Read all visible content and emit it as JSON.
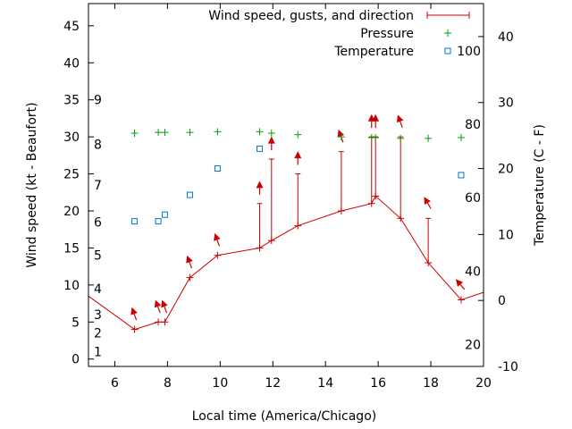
{
  "chart_data": {
    "type": "line",
    "xlabel": "Local time (America/Chicago)",
    "ylabel": "Wind speed (kt - Beaufort)",
    "y2label": "Temperature (C - F)",
    "xlim": [
      5,
      20
    ],
    "ylim": [
      -1,
      48
    ],
    "y2lim": [
      -10,
      45
    ],
    "x_ticks": [
      "6",
      "8",
      "10",
      "12",
      "14",
      "16",
      "18",
      "20"
    ],
    "y_ticks": [
      "0",
      "5",
      "10",
      "15",
      "20",
      "25",
      "30",
      "35",
      "40",
      "45"
    ],
    "y2_ticks": [
      "-10",
      "0",
      "10",
      "20",
      "30",
      "40"
    ],
    "beaufort_labels": [
      {
        "text": "1",
        "wind": 1
      },
      {
        "text": "2",
        "wind": 3.5
      },
      {
        "text": "3",
        "wind": 6
      },
      {
        "text": "4",
        "wind": 9.5
      },
      {
        "text": "5",
        "wind": 14
      },
      {
        "text": "6",
        "wind": 18.5
      },
      {
        "text": "7",
        "wind": 23.5
      },
      {
        "text": "8",
        "wind": 29
      },
      {
        "text": "9",
        "wind": 35
      }
    ],
    "fahrenheit_labels": [
      {
        "text": "20",
        "temp": -6.7
      },
      {
        "text": "40",
        "temp": 4.4
      },
      {
        "text": "60",
        "temp": 15.6
      },
      {
        "text": "80",
        "temp": 26.7
      },
      {
        "text": "100",
        "temp": 37.8
      }
    ],
    "legend": {
      "position": "top-right",
      "entries": [
        "Wind speed, gusts, and direction",
        "Pressure",
        "Temperature"
      ]
    },
    "series": [
      {
        "name": "Wind speed, gusts, and direction",
        "type": "line",
        "color": "#cc0000",
        "x": [
          6.75,
          7.65,
          7.9,
          8.85,
          9.9,
          11.5,
          11.95,
          12.95,
          14.6,
          15.75,
          15.9,
          16.85,
          17.9,
          19.15
        ],
        "values": [
          4,
          5,
          5,
          11,
          14,
          15,
          16,
          18,
          20,
          21,
          22,
          19,
          13,
          8
        ],
        "gusts": [
          null,
          null,
          null,
          null,
          null,
          21,
          27,
          25,
          28,
          30,
          30,
          30,
          19,
          null
        ],
        "direction_deg": [
          340,
          340,
          340,
          340,
          340,
          360,
          360,
          360,
          340,
          360,
          360,
          340,
          330,
          320
        ],
        "extends_to": [
          5,
          20
        ],
        "edge_values": [
          8.5,
          9
        ]
      },
      {
        "name": "Pressure",
        "type": "scatter",
        "marker": "+",
        "color": "#00a000",
        "x": [
          6.75,
          7.65,
          7.9,
          8.85,
          9.9,
          11.5,
          11.95,
          12.95,
          14.6,
          15.75,
          15.9,
          16.85,
          17.9,
          19.15
        ],
        "values": [
          30.5,
          30.6,
          30.6,
          30.6,
          30.7,
          30.7,
          30.5,
          30.3,
          30,
          29.9,
          29.9,
          29.8,
          29.8,
          29.9
        ]
      },
      {
        "name": "Temperature",
        "type": "scatter",
        "marker": "square",
        "color": "#0077cc",
        "axis": "right",
        "x": [
          6.75,
          7.65,
          7.9,
          8.85,
          9.9,
          11.5,
          19.15
        ],
        "values": [
          12,
          12,
          13,
          16,
          20,
          23,
          19
        ]
      }
    ]
  }
}
